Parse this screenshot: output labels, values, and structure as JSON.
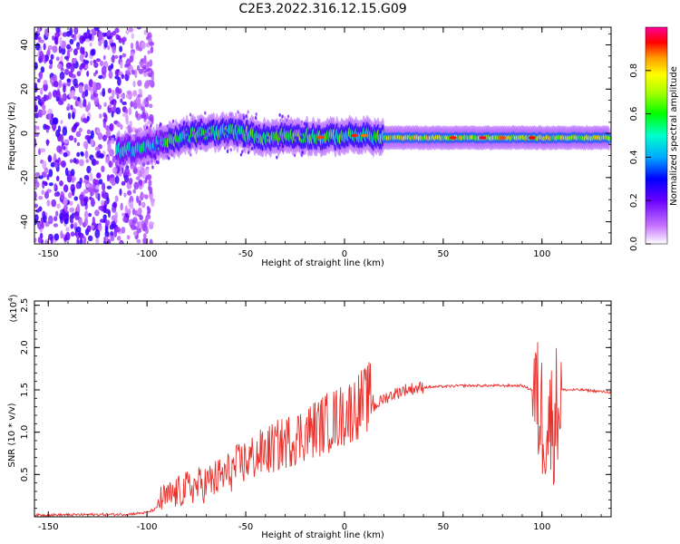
{
  "title": "C2E3.2022.316.12.15.G09",
  "chart_data": [
    {
      "type": "heatmap",
      "xlabel": "Height of straight line (km)",
      "ylabel": "Frequency (Hz)",
      "xlim": [
        -157,
        135
      ],
      "ylim": [
        -50,
        48
      ],
      "xticks": [
        "-150",
        "-100",
        "-50",
        "0",
        "50",
        "100"
      ],
      "yticks": [
        "40",
        "20",
        "0",
        "-20",
        "-40"
      ],
      "colorbar": {
        "label": "Normalized spectral amplitude",
        "range": [
          0,
          1
        ],
        "ticks": [
          "0.0",
          "0.2",
          "0.4",
          "0.6",
          "0.8"
        ]
      },
      "ridge": {
        "description_points_x": [
          -115,
          -100,
          -90,
          -80,
          -70,
          -60,
          -50,
          -40,
          -30,
          -20,
          -10,
          0,
          10,
          20,
          40,
          60,
          80,
          100,
          135
        ],
        "description_points_y": [
          -8,
          -6,
          -4,
          -1,
          0,
          1,
          0,
          -2,
          -1,
          -1,
          -2,
          -1,
          -1,
          -2,
          -2,
          -2,
          -2,
          -2,
          -2
        ]
      }
    },
    {
      "type": "line",
      "xlabel": "Height of straight line (km)",
      "ylabel": "SNR (10 * v/v)",
      "yscale_label": "(x10",
      "yscale_exp": "4",
      "yscale_close": ")",
      "xlim": [
        -157,
        135
      ],
      "ylim": [
        0,
        2.55
      ],
      "xticks": [
        "-150",
        "-100",
        "-50",
        "0",
        "50",
        "100"
      ],
      "yticks": [
        "0.5",
        "1.0",
        "1.5",
        "2.0",
        "2.5"
      ],
      "series": [
        {
          "color": "#e8302c",
          "envelope_x": [
            -157,
            -110,
            -100,
            -90,
            -80,
            -70,
            -60,
            -50,
            -40,
            -30,
            -20,
            -10,
            0,
            10,
            20,
            30,
            40,
            60,
            80,
            90,
            95,
            100,
            105,
            110,
            120,
            135
          ],
          "envelope_y": [
            0.02,
            0.03,
            0.05,
            0.15,
            0.25,
            0.3,
            0.4,
            0.55,
            0.65,
            0.75,
            0.85,
            0.95,
            1.05,
            1.2,
            1.4,
            1.5,
            1.53,
            1.55,
            1.55,
            1.55,
            1.5,
            1.2,
            1.1,
            1.5,
            1.5,
            1.47
          ]
        }
      ]
    }
  ]
}
